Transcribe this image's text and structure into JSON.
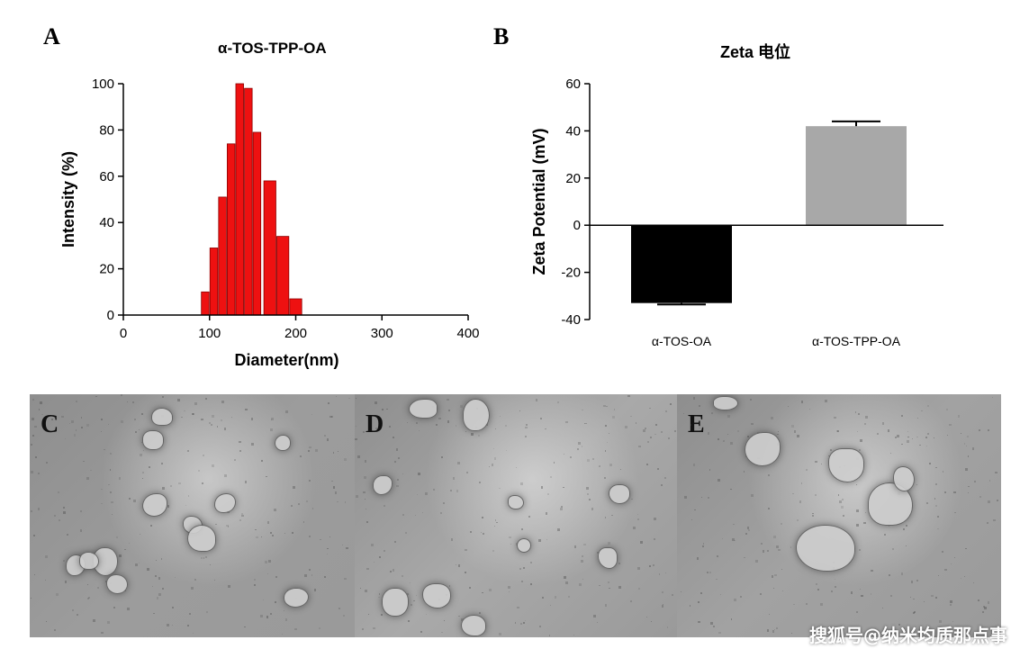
{
  "panel_a": {
    "letter": "A",
    "chart_data": {
      "type": "bar",
      "title": "α-TOS-TPP-OA",
      "xlabel": "Diameter(nm)",
      "ylabel": "Intensity (%)",
      "xlim": [
        0,
        400
      ],
      "ylim": [
        0,
        100
      ],
      "xticks": [
        "0",
        "100",
        "200",
        "300",
        "400"
      ],
      "yticks": [
        "0",
        "20",
        "40",
        "60",
        "80",
        "100"
      ],
      "x": [
        95,
        105,
        115,
        125,
        135,
        145,
        155,
        170,
        185,
        200
      ],
      "values": [
        10,
        29,
        51,
        74,
        100,
        98,
        79,
        58,
        34,
        7
      ],
      "bar_color": "#ee1111"
    }
  },
  "panel_b": {
    "letter": "B",
    "chart_data": {
      "type": "bar",
      "title": "Zeta 电位",
      "xlabel": "",
      "ylabel": "Zeta Potential (mV)",
      "ylim": [
        -40,
        60
      ],
      "yticks": [
        "60",
        "40",
        "20",
        "0",
        "-20",
        "-40"
      ],
      "categories": [
        "α-TOS-OA",
        "α-TOS-TPP-OA"
      ],
      "values": [
        -33,
        42
      ],
      "error": [
        0.6,
        2
      ],
      "colors": [
        "#000000",
        "#a8a8a8"
      ]
    }
  },
  "tem_images": [
    {
      "letter": "C",
      "background": "#9c9c9c"
    },
    {
      "letter": "D",
      "background": "#a9a9a9"
    },
    {
      "letter": "E",
      "background": "#a2a2a2"
    }
  ],
  "watermark": "搜狐号@纳米均质那点事"
}
